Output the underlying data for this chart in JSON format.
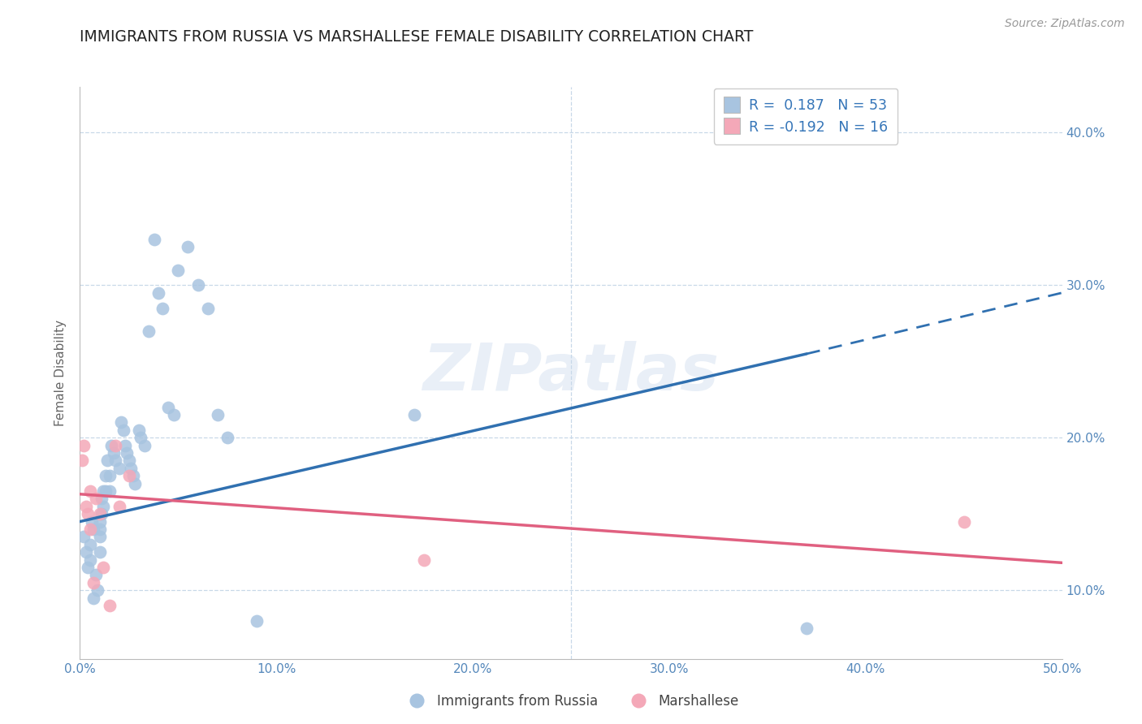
{
  "title": "IMMIGRANTS FROM RUSSIA VS MARSHALLESE FEMALE DISABILITY CORRELATION CHART",
  "source": "Source: ZipAtlas.com",
  "ylabel": "Female Disability",
  "xlim": [
    0.0,
    0.5
  ],
  "ylim": [
    0.055,
    0.43
  ],
  "xticks": [
    0.0,
    0.1,
    0.2,
    0.3,
    0.4,
    0.5
  ],
  "xtick_labels": [
    "0.0%",
    "10.0%",
    "20.0%",
    "30.0%",
    "40.0%",
    "50.0%"
  ],
  "yticks": [
    0.1,
    0.2,
    0.3,
    0.4
  ],
  "ytick_labels": [
    "10.0%",
    "20.0%",
    "30.0%",
    "40.0%"
  ],
  "russia_R": 0.187,
  "russia_N": 53,
  "marshallese_R": -0.192,
  "marshallese_N": 16,
  "russia_color": "#a8c4e0",
  "marshallese_color": "#f4a8b8",
  "trendline_russia_color": "#3070b0",
  "trendline_marshallese_color": "#e06080",
  "legend_text_color": "#3575b8",
  "axis_color": "#5588bb",
  "watermark": "ZIPatlas",
  "russia_x": [
    0.002,
    0.003,
    0.004,
    0.005,
    0.005,
    0.006,
    0.007,
    0.007,
    0.008,
    0.009,
    0.01,
    0.01,
    0.01,
    0.01,
    0.011,
    0.011,
    0.012,
    0.012,
    0.013,
    0.013,
    0.014,
    0.015,
    0.015,
    0.016,
    0.017,
    0.018,
    0.02,
    0.021,
    0.022,
    0.023,
    0.024,
    0.025,
    0.026,
    0.027,
    0.028,
    0.03,
    0.031,
    0.033,
    0.035,
    0.038,
    0.04,
    0.042,
    0.045,
    0.048,
    0.05,
    0.055,
    0.06,
    0.065,
    0.07,
    0.075,
    0.09,
    0.17,
    0.37
  ],
  "russia_y": [
    0.135,
    0.125,
    0.115,
    0.13,
    0.12,
    0.145,
    0.14,
    0.095,
    0.11,
    0.1,
    0.145,
    0.14,
    0.135,
    0.125,
    0.16,
    0.15,
    0.165,
    0.155,
    0.175,
    0.165,
    0.185,
    0.175,
    0.165,
    0.195,
    0.19,
    0.185,
    0.18,
    0.21,
    0.205,
    0.195,
    0.19,
    0.185,
    0.18,
    0.175,
    0.17,
    0.205,
    0.2,
    0.195,
    0.27,
    0.33,
    0.295,
    0.285,
    0.22,
    0.215,
    0.31,
    0.325,
    0.3,
    0.285,
    0.215,
    0.2,
    0.08,
    0.215,
    0.075
  ],
  "marshallese_x": [
    0.001,
    0.002,
    0.003,
    0.004,
    0.005,
    0.005,
    0.007,
    0.008,
    0.01,
    0.012,
    0.015,
    0.018,
    0.02,
    0.025,
    0.175,
    0.45
  ],
  "marshallese_y": [
    0.185,
    0.195,
    0.155,
    0.15,
    0.165,
    0.14,
    0.105,
    0.16,
    0.15,
    0.115,
    0.09,
    0.195,
    0.155,
    0.175,
    0.12,
    0.145
  ],
  "trendline_russia_x0": 0.0,
  "trendline_russia_x1": 0.37,
  "trendline_russia_x2": 0.5,
  "trendline_russia_y0": 0.145,
  "trendline_russia_y1": 0.255,
  "trendline_russia_y2": 0.295,
  "trendline_marsh_x0": 0.0,
  "trendline_marsh_x1": 0.5,
  "trendline_marsh_y0": 0.163,
  "trendline_marsh_y1": 0.118
}
